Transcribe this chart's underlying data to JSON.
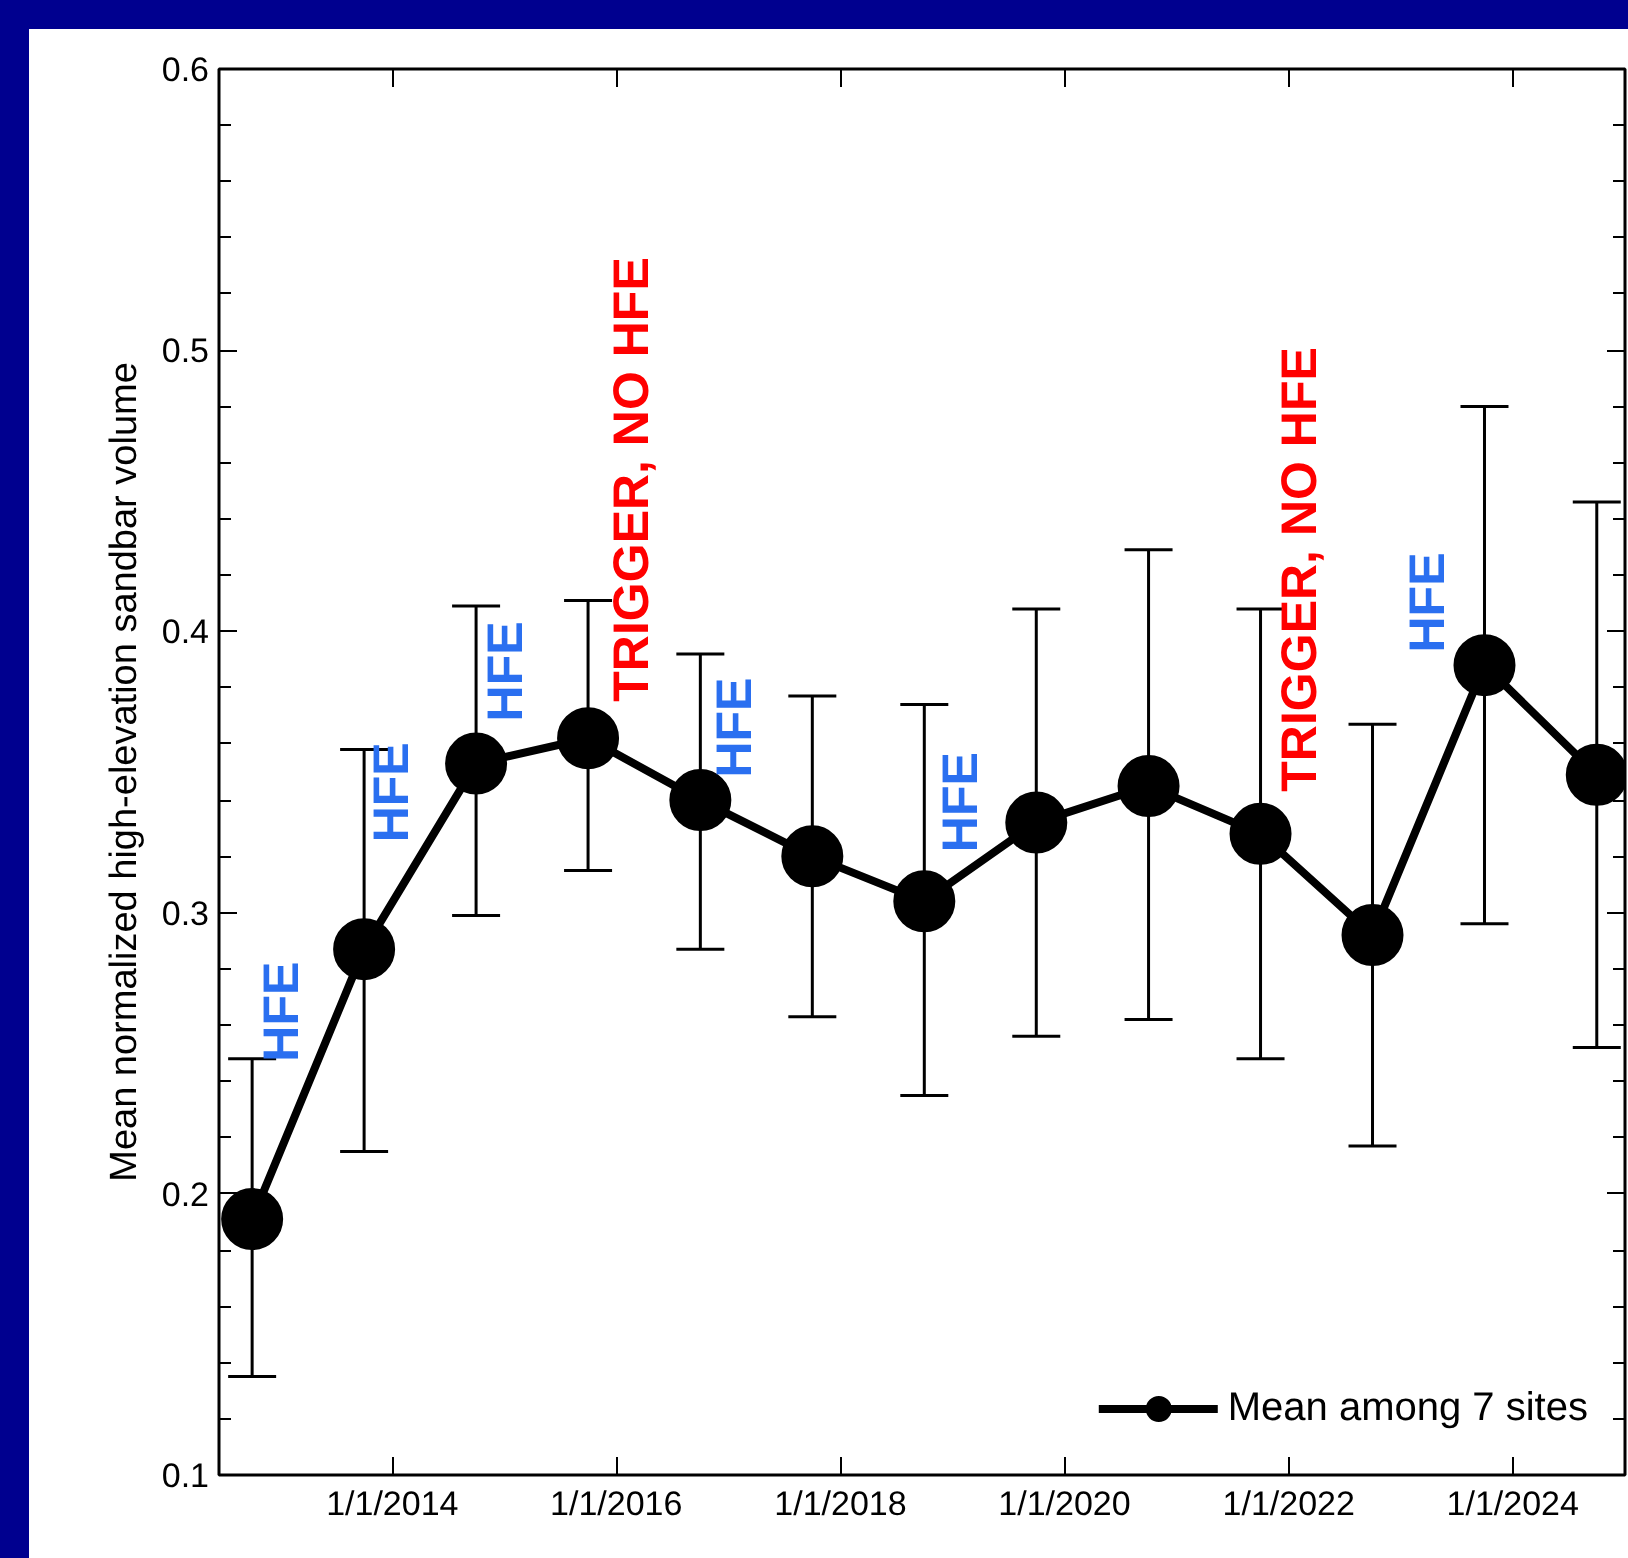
{
  "chart_data": {
    "type": "line",
    "ylabel": "Mean normalized high-elevation sandbar volume",
    "x": [
      "2012-10-01",
      "2013-10-01",
      "2014-10-01",
      "2015-10-01",
      "2016-10-01",
      "2017-10-01",
      "2018-10-01",
      "2019-10-01",
      "2020-10-01",
      "2021-10-01",
      "2022-10-01",
      "2023-10-01",
      "2024-10-01"
    ],
    "series": [
      {
        "name": "Mean among 7 sites",
        "color": "#000000",
        "values": [
          0.191,
          0.287,
          0.353,
          0.362,
          0.34,
          0.32,
          0.304,
          0.332,
          0.345,
          0.328,
          0.292,
          0.388,
          0.349
        ],
        "errors": [
          [
            0.135,
            0.248
          ],
          [
            0.215,
            0.358
          ],
          [
            0.299,
            0.409
          ],
          [
            0.315,
            0.411
          ],
          [
            0.287,
            0.392
          ],
          [
            0.263,
            0.377
          ],
          [
            0.235,
            0.374
          ],
          [
            0.256,
            0.408
          ],
          [
            0.262,
            0.429
          ],
          [
            0.248,
            0.408
          ],
          [
            0.217,
            0.367
          ],
          [
            0.296,
            0.48
          ],
          [
            0.252,
            0.446
          ]
        ]
      }
    ],
    "xlim": [
      "2012-06-15",
      "2025-01-01"
    ],
    "xticks": [
      {
        "value": "2014-01-01",
        "label": "1/1/2014"
      },
      {
        "value": "2016-01-01",
        "label": "1/1/2016"
      },
      {
        "value": "2018-01-01",
        "label": "1/1/2018"
      },
      {
        "value": "2020-01-01",
        "label": "1/1/2020"
      },
      {
        "value": "2022-01-01",
        "label": "1/1/2022"
      },
      {
        "value": "2024-01-01",
        "label": "1/1/2024"
      }
    ],
    "ylim": [
      0.1,
      0.6
    ],
    "yticks": [
      0.1,
      0.2,
      0.3,
      0.4,
      0.5,
      0.6
    ],
    "marker": "circle",
    "line_style": "solid",
    "legend": "bottom right",
    "grid": false,
    "annotations": [
      "HFE",
      "HFE",
      "HFE",
      "TRIGGER, NO HFE",
      "HFE",
      "HFE",
      "TRIGGER, NO HFE",
      "HFE"
    ]
  }
}
